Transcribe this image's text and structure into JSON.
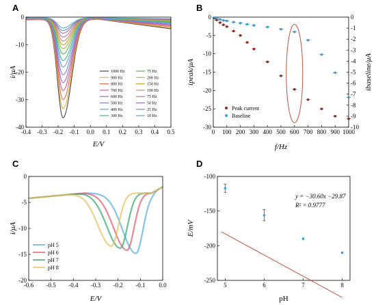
{
  "chart_data": [
    {
      "panel": "A",
      "type": "line",
      "xlabel": "E/V",
      "ylabel": "i/μA",
      "xlim": [
        -0.4,
        0.5
      ],
      "ylim": [
        -40,
        0
      ],
      "xticks": [
        "-0.4",
        "-0.3",
        "-0.2",
        "-0.1",
        "0.0",
        "0.1",
        "0.2",
        "0.3",
        "0.4",
        "0.5"
      ],
      "yticks": [
        "0",
        "-10",
        "-20",
        "-30",
        "-40"
      ],
      "legend_position": "bottom-right",
      "series": [
        {
          "name": "1000 Hz",
          "color": "#444444",
          "peak_x": -0.17,
          "peak_y": -38.5
        },
        {
          "name": "900 Hz",
          "color": "#e0b040",
          "peak_x": -0.17,
          "peak_y": -35.0
        },
        {
          "name": "800 Hz",
          "color": "#e07050",
          "peak_x": -0.17,
          "peak_y": -31.5
        },
        {
          "name": "700 Hz",
          "color": "#d06090",
          "peak_x": -0.17,
          "peak_y": -28.0
        },
        {
          "name": "600 Hz",
          "color": "#a06cc0",
          "peak_x": -0.17,
          "peak_y": -25.0
        },
        {
          "name": "500 Hz",
          "color": "#8080d0",
          "peak_x": -0.17,
          "peak_y": -22.0
        },
        {
          "name": "400 Hz",
          "color": "#60a0d0",
          "peak_x": -0.17,
          "peak_y": -19.0
        },
        {
          "name": "300 Hz",
          "color": "#40b0a0",
          "peak_x": -0.17,
          "peak_y": -16.5
        },
        {
          "name": "75 Hz",
          "color": "#60b060",
          "peak_x": -0.17,
          "peak_y": -14.0
        },
        {
          "name": "200 Hz",
          "color": "#a0c040",
          "peak_x": -0.17,
          "peak_y": -12.0
        },
        {
          "name": "150 Hz",
          "color": "#d0a030",
          "peak_x": -0.17,
          "peak_y": -10.5
        },
        {
          "name": "100 Hz",
          "color": "#e08060",
          "peak_x": -0.17,
          "peak_y": -9.0
        },
        {
          "name": "75 Hz",
          "color": "#c070a0",
          "peak_x": -0.17,
          "peak_y": -7.5
        },
        {
          "name": "50 Hz",
          "color": "#9070b0",
          "peak_x": -0.17,
          "peak_y": -6.0
        },
        {
          "name": "25 Hz",
          "color": "#7090c0",
          "peak_x": -0.17,
          "peak_y": -5.0
        },
        {
          "name": "10 Hz",
          "color": "#60a8b8",
          "peak_x": -0.17,
          "peak_y": -4.0
        }
      ]
    },
    {
      "panel": "B",
      "type": "scatter",
      "xlabel": "f/Hz",
      "ylabel_left": "ipeak/μA",
      "ylabel_right": "ibaseline/μA",
      "xlim": [
        0,
        1000
      ],
      "ylim_left": [
        -30,
        0
      ],
      "ylim_right": [
        -10,
        0
      ],
      "xticks": [
        "0",
        "100",
        "200",
        "300",
        "400",
        "500",
        "600",
        "700",
        "800",
        "900",
        "1000"
      ],
      "yticks_left": [
        "0",
        "-5",
        "-10",
        "-15",
        "-20",
        "-25",
        "-30"
      ],
      "yticks_right": [
        "0",
        "-1",
        "-2",
        "-3",
        "-4",
        "-5",
        "-6",
        "-7",
        "-8",
        "-9",
        "-10"
      ],
      "legend_position": "bottom-left",
      "series": [
        {
          "name": "Peak current",
          "color": "#8b2a1a",
          "axis": "left",
          "x": [
            10,
            25,
            50,
            75,
            100,
            150,
            200,
            250,
            300,
            400,
            500,
            600,
            700,
            800,
            900,
            1000
          ],
          "y": [
            -0.3,
            -0.8,
            -1.5,
            -2.1,
            -2.6,
            -3.8,
            -5.0,
            -6.9,
            -8.7,
            -12.2,
            -16.0,
            -19.7,
            -22.5,
            -25.0,
            -27.0,
            -27.7
          ]
        },
        {
          "name": "Baseline",
          "color": "#3aa0dc",
          "axis": "right",
          "x": [
            10,
            25,
            50,
            75,
            100,
            150,
            200,
            250,
            300,
            400,
            500,
            600,
            700,
            800,
            900,
            1000
          ],
          "y": [
            -0.05,
            -0.1,
            -0.2,
            -0.3,
            -0.35,
            -0.45,
            -0.55,
            -0.65,
            -0.75,
            -0.9,
            -1.1,
            -1.35,
            -2.1,
            -3.4,
            -5.05,
            -7.3
          ]
        }
      ],
      "annotation": "highlighted point at 600 Hz"
    },
    {
      "panel": "C",
      "type": "line",
      "xlabel": "E/V",
      "ylabel": "i/μA",
      "xlim": [
        -0.6,
        0.0
      ],
      "ylim": [
        -20,
        0
      ],
      "xticks": [
        "-0.6",
        "-0.5",
        "-0.4",
        "-0.3",
        "-0.2",
        "-0.1",
        "0.0"
      ],
      "yticks": [
        "0",
        "-5",
        "-10",
        "-15",
        "-20"
      ],
      "legend_position": "bottom-left",
      "series": [
        {
          "name": "pH 5",
          "color": "#5ab0e0",
          "peak_x": -0.12,
          "peak_y": -14.8
        },
        {
          "name": "pH 6",
          "color": "#e06070",
          "peak_x": -0.16,
          "peak_y": -14.2
        },
        {
          "name": "pH 7",
          "color": "#40a870",
          "peak_x": -0.19,
          "peak_y": -13.8
        },
        {
          "name": "pH 8",
          "color": "#e8c060",
          "peak_x": -0.23,
          "peak_y": -13.4
        }
      ]
    },
    {
      "panel": "D",
      "type": "scatter",
      "xlabel": "pH",
      "ylabel": "E/mV",
      "xlim": [
        4.8,
        8.2
      ],
      "ylim": [
        -250,
        -100
      ],
      "xticks": [
        "5",
        "6",
        "7",
        "8"
      ],
      "yticks": [
        "-100",
        "-150",
        "-200",
        "-250"
      ],
      "equation": "y = −30.60x −29.87",
      "r2": "R² = 0.9777",
      "points": {
        "x": [
          5,
          6,
          7,
          8
        ],
        "y": [
          -117,
          -156,
          -190,
          -210
        ],
        "err": [
          6,
          8,
          0,
          0
        ]
      },
      "fit": {
        "slope": -30.6,
        "intercept": -29.87
      }
    }
  ]
}
